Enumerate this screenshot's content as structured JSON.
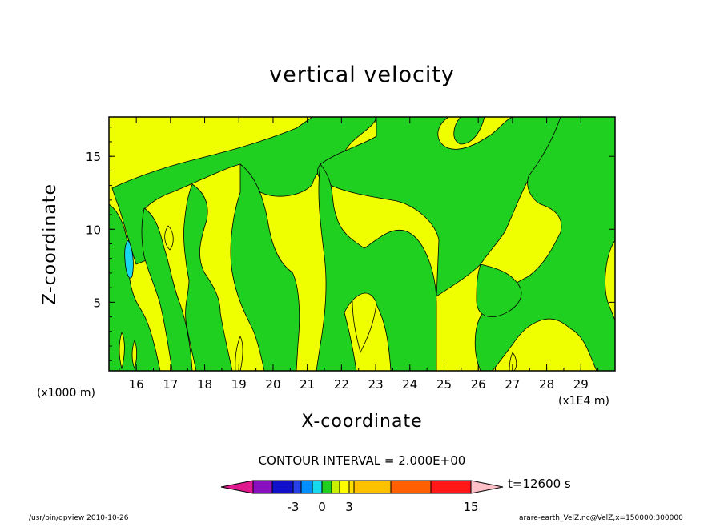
{
  "chart_data": {
    "type": "heatmap",
    "title": "vertical velocity",
    "xlabel": "X-coordinate",
    "ylabel": "Z-coordinate",
    "x_unit_left": "(x1000 m)",
    "x_unit_right": "(x1E4 m)",
    "xlim": [
      15.2,
      30.0
    ],
    "ylim": [
      0.3,
      17.7
    ],
    "x_ticks": [
      "16",
      "17",
      "18",
      "19",
      "20",
      "21",
      "22",
      "23",
      "24",
      "25",
      "26",
      "27",
      "28",
      "29"
    ],
    "y_ticks": [
      "5",
      "10",
      "15"
    ],
    "contour_interval": "CONTOUR INTERVAL = 2.000E+00",
    "time": "t=12600 s",
    "colorbar": {
      "tick_labels": [
        "-3",
        "0",
        "3",
        "15"
      ],
      "colors": [
        "#e0198f",
        "#8a0fc0",
        "#1010c8",
        "#2840e8",
        "#0090ff",
        "#18d8f0",
        "#20d020",
        "#c8f000",
        "#ffff00",
        "#ffe000",
        "#ffc000",
        "#ff6000",
        "#ff1818",
        "#ff7878",
        "#ffc0c8"
      ],
      "field_colors": {
        "negative_small": "#20d020",
        "positive_small": "#f0ff00",
        "negative_moderate": "#18d8f0"
      }
    }
  },
  "footer": {
    "left": "/usr/bin/gpview   2010-10-26",
    "right": "arare-earth_VelZ.nc@VelZ,x=150000:300000"
  }
}
